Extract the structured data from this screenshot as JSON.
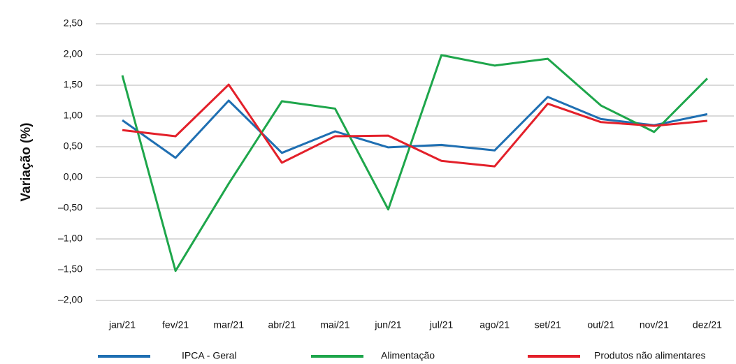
{
  "chart_data": {
    "type": "line",
    "y_label": "Variação (%)",
    "categories": [
      "jan/21",
      "fev/21",
      "mar/21",
      "abr/21",
      "mai/21",
      "jun/21",
      "jul/21",
      "ago/21",
      "set/21",
      "out/21",
      "nov/21",
      "dez/21"
    ],
    "series": [
      {
        "name": "IPCA - Geral",
        "color": "#1f6fb2",
        "values": [
          0.93,
          0.32,
          1.25,
          0.4,
          0.75,
          0.49,
          0.53,
          0.44,
          1.31,
          0.95,
          0.85,
          1.03
        ]
      },
      {
        "name": "Alimentação",
        "color": "#1ea64b",
        "values": [
          1.66,
          -1.52,
          -0.1,
          1.24,
          1.12,
          -0.52,
          1.99,
          1.82,
          1.93,
          1.17,
          0.74,
          1.61
        ]
      },
      {
        "name": "Produtos não alimentares",
        "color": "#e3202a",
        "values": [
          0.77,
          0.67,
          1.51,
          0.24,
          0.67,
          0.68,
          0.27,
          0.18,
          1.2,
          0.9,
          0.84,
          0.92
        ]
      }
    ],
    "ylim": [
      -2,
      2.5
    ],
    "yticks": [
      {
        "value": 2.5,
        "label": "2,50"
      },
      {
        "value": 2,
        "label": "2,00"
      },
      {
        "value": 1.5,
        "label": "1,50"
      },
      {
        "value": 1,
        "label": "1,00"
      },
      {
        "value": 0.5,
        "label": "0,50"
      },
      {
        "value": 0,
        "label": "0,00"
      },
      {
        "value": -0.5,
        "label": "–0,50"
      },
      {
        "value": -1,
        "label": "–1,00"
      },
      {
        "value": -1.5,
        "label": "–1,50"
      },
      {
        "value": -2,
        "label": "–2,00"
      }
    ],
    "grid": true
  }
}
